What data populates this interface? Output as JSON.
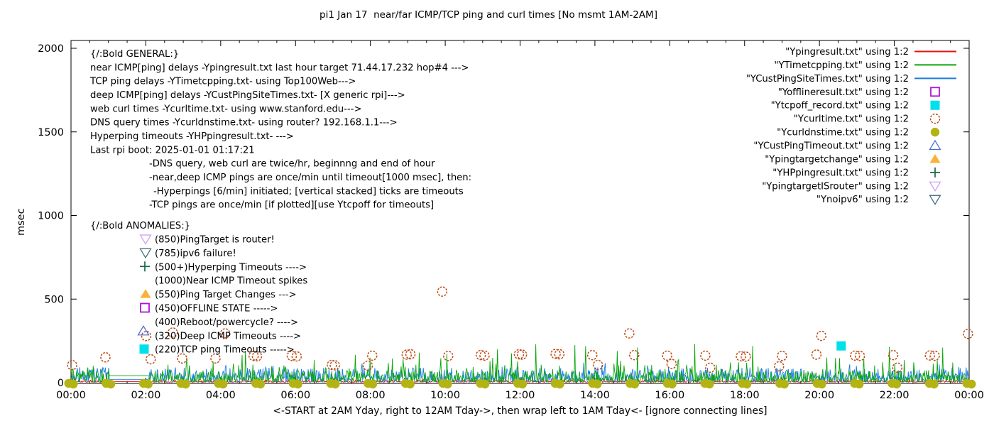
{
  "title": "pi1 Jan 17  near/far ICMP/TCP ping and curl times [No msmt 1AM-2AM]",
  "xlabel": "<-START at 2AM Yday, right to 12AM Tday->, then wrap left to 1AM Tday<- [ignore connecting lines]",
  "ylabel": "msec",
  "colors": {
    "red": "#e41212",
    "green": "#0aa50a",
    "blue": "#1b7cdf",
    "magenta": "#aa16d8",
    "cyan": "#00e0ea",
    "orange_brown": "#bf4a12",
    "olive": "#b3b313",
    "steel_blue": "#4169cf",
    "orange": "#f9b13a",
    "dark_green": "#17684a",
    "violet": "#c89bef",
    "dark_teal": "#3a657a",
    "axis": "#000000",
    "text": "#000000"
  },
  "legend": {
    "entries": [
      {
        "label": "\"Ypingresult.txt\" using 1:2",
        "sample": "line",
        "color_key": "red"
      },
      {
        "label": "\"YTimetcpping.txt\" using 1:2",
        "sample": "line",
        "color_key": "green"
      },
      {
        "label": "\"YCustPingSiteTimes.txt\" using 1:2",
        "sample": "line",
        "color_key": "blue"
      },
      {
        "label": "\"Yofflineresult.txt\" using 1:2",
        "sample": "marker",
        "shape": "square-open",
        "color_key": "magenta"
      },
      {
        "label": "\"Ytcpoff_record.txt\" using 1:2",
        "sample": "marker",
        "shape": "square-filled",
        "color_key": "cyan"
      },
      {
        "label": "\"Ycurltime.txt\" using 1:2",
        "sample": "marker",
        "shape": "circle-open",
        "color_key": "orange_brown"
      },
      {
        "label": "\"Ycurldnstime.txt\" using 1:2",
        "sample": "marker",
        "shape": "circle-filled",
        "color_key": "olive"
      },
      {
        "label": "\"YCustPingTimeout.txt\" using 1:2",
        "sample": "marker",
        "shape": "triangle-up-open",
        "color_key": "steel_blue"
      },
      {
        "label": "\"Ypingtargetchange\" using 1:2",
        "sample": "marker",
        "shape": "triangle-up-filled",
        "color_key": "orange"
      },
      {
        "label": "\"YHPpingresult.txt\" using 1:2",
        "sample": "marker",
        "shape": "plus",
        "color_key": "dark_green"
      },
      {
        "label": "\"YpingtargetISrouter\" using 1:2",
        "sample": "marker",
        "shape": "triangle-down-open",
        "color_key": "violet"
      },
      {
        "label": "\"Ynoipv6\" using 1:2",
        "sample": "marker",
        "shape": "triangle-down-open",
        "color_key": "dark_teal"
      }
    ]
  },
  "notes_general": {
    "header": "{/:Bold GENERAL:}",
    "lines": [
      "near ICMP[ping] delays -Ypingresult.txt last hour target 71.44.17.232 hop#4 --->",
      "TCP ping delays -YTimetcpping.txt- using Top100Web--->",
      "deep ICMP[ping] delays -YCustPingSiteTimes.txt- [X generic rpi]--->",
      "web curl times -Ycurltime.txt- using www.stanford.edu--->",
      "DNS query times -Ycurldnstime.txt- using router? 192.168.1.1--->",
      "Hyperping timeouts -YHPpingresult.txt- --->",
      "Last rpi boot: 2025-01-01 01:17:21"
    ],
    "indent_lines": [
      {
        "x": 210,
        "text": "-DNS query, web curl are twice/hr, beginnng and end of hour"
      },
      {
        "x": 210,
        "text": "-near,deep ICMP pings are once/min until timeout[1000 msec], then:"
      },
      {
        "x": 216,
        "text": "-Hyperpings [6/min] initiated; [vertical stacked] ticks are timeouts"
      },
      {
        "x": 210,
        "text": "-TCP pings are once/min [if plotted][use Ytcpoff for timeouts]"
      }
    ]
  },
  "notes_anomalies": {
    "header": "{/:Bold ANOMALIES:}",
    "rows": [
      {
        "text": "(850)PingTarget is router!",
        "markers": [
          {
            "shape": "triangle-down-open",
            "color_key": "violet",
            "dx": 0,
            "dy": 0
          }
        ]
      },
      {
        "text": "(785)ipv6 failure!",
        "markers": [
          {
            "shape": "triangle-down-open",
            "color_key": "dark_teal",
            "dx": 0,
            "dy": 0
          }
        ]
      },
      {
        "text": "(500+)Hyperping Timeouts ---->",
        "markers": [
          {
            "shape": "plus",
            "color_key": "dark_green",
            "dx": -1,
            "dy": 0
          }
        ]
      },
      {
        "text": "(1000)Near ICMP Timeout spikes",
        "markers": []
      },
      {
        "text": "(550)Ping Target Changes --->",
        "markers": [
          {
            "shape": "triangle-up-filled",
            "color_key": "orange",
            "dx": 0,
            "dy": 0
          }
        ]
      },
      {
        "text": "(450)OFFLINE STATE ----->",
        "markers": [
          {
            "shape": "square-open",
            "color_key": "magenta",
            "dx": -1,
            "dy": 0
          }
        ]
      },
      {
        "text": "(400)Reboot/powercycle? ---->",
        "markers": []
      },
      {
        "text": "(320)Deep ICMP Timeouts ---->",
        "markers": [
          {
            "shape": "triangle-up-open",
            "color_key": "steel_blue",
            "dx": -3,
            "dy": -6
          },
          {
            "shape": "circle-open",
            "color_key": "orange_brown",
            "dx": 1,
            "dy": 1
          }
        ]
      },
      {
        "text": "(220)TCP ping Timeouts ----->",
        "markers": [
          {
            "shape": "square-filled",
            "color_key": "cyan",
            "dx": -2,
            "dy": 0
          }
        ]
      }
    ]
  },
  "chart_data": {
    "type": "line",
    "x_axis": {
      "range_hours": [
        0,
        24
      ],
      "major_tick_hours": 2,
      "minor_tick_hours": 0.5,
      "tick_labels": [
        "00:00",
        "02:00",
        "04:00",
        "06:00",
        "08:00",
        "10:00",
        "12:00",
        "14:00",
        "16:00",
        "18:00",
        "20:00",
        "22:00",
        "00:00"
      ]
    },
    "y_axis": {
      "range_msec": [
        0,
        2000
      ],
      "tick_values": [
        0,
        500,
        1000,
        1500,
        2000
      ],
      "tick_labels": [
        "0",
        "500",
        "1000",
        "1500",
        "2000"
      ]
    },
    "measurement_gap": {
      "start_hour": 1.02,
      "end_hour": 2.08,
      "note": "No msmt 1AM-2AM"
    },
    "series": [
      {
        "name": "Ypingresult.txt",
        "style": "line",
        "color_key": "red",
        "noise": {
          "base": 3,
          "amp": 12,
          "spike_prob": 0.02,
          "spike_amp": 14,
          "spike2_prob": 0,
          "spike2_amp": 0,
          "seed": 11
        },
        "gap_value": 6
      },
      {
        "name": "YCustPingSiteTimes.txt",
        "style": "line",
        "color_key": "blue",
        "noise": {
          "base": 6,
          "amp": 85,
          "spike_prob": 0.1,
          "spike_amp": 40,
          "spike2_prob": 0,
          "spike2_amp": 0,
          "seed": 7
        },
        "gap_value": 20
      },
      {
        "name": "YTimetcpping.txt",
        "style": "line",
        "color_key": "green",
        "noise": {
          "base": 4,
          "amp": 70,
          "spike_prob": 0.13,
          "spike_amp": 110,
          "spike2_prob": 0.012,
          "spike2_amp": 90,
          "seed": 3
        },
        "gap_value": 42,
        "spikes": [
          [
            3.1,
            150
          ],
          [
            4.67,
            190
          ],
          [
            8.0,
            150
          ],
          [
            9.3,
            180
          ],
          [
            11.4,
            200
          ],
          [
            12.42,
            230
          ],
          [
            13.47,
            225
          ],
          [
            14.6,
            190
          ],
          [
            15.13,
            210
          ],
          [
            16.67,
            230
          ],
          [
            18.22,
            220
          ],
          [
            20.2,
            150
          ],
          [
            21.87,
            215
          ],
          [
            23.3,
            210
          ]
        ]
      },
      {
        "name": "Ycurltime.txt",
        "style": "points",
        "marker": "circle-open",
        "color_key": "orange_brown",
        "points": [
          [
            0.03,
            105
          ],
          [
            0.92,
            152
          ],
          [
            2.13,
            140
          ],
          [
            2.72,
            300
          ],
          [
            2.97,
            145
          ],
          [
            3.86,
            145
          ],
          [
            4.12,
            295
          ],
          [
            4.88,
            160
          ],
          [
            4.97,
            158
          ],
          [
            5.9,
            160
          ],
          [
            6.03,
            157
          ],
          [
            6.97,
            106
          ],
          [
            7.05,
            104
          ],
          [
            7.93,
            102
          ],
          [
            8.05,
            162
          ],
          [
            8.97,
            168
          ],
          [
            9.07,
            170
          ],
          [
            9.92,
            545
          ],
          [
            10.08,
            160
          ],
          [
            10.95,
            165
          ],
          [
            11.05,
            162
          ],
          [
            11.97,
            170
          ],
          [
            12.05,
            168
          ],
          [
            12.95,
            172
          ],
          [
            13.05,
            170
          ],
          [
            13.93,
            165
          ],
          [
            14.08,
            106
          ],
          [
            14.92,
            295
          ],
          [
            15.05,
            165
          ],
          [
            15.93,
            162
          ],
          [
            16.05,
            112
          ],
          [
            16.95,
            162
          ],
          [
            17.08,
            90
          ],
          [
            17.9,
            158
          ],
          [
            18.03,
            156
          ],
          [
            18.92,
            98
          ],
          [
            19.0,
            160
          ],
          [
            19.92,
            168
          ],
          [
            20.05,
            280
          ],
          [
            20.95,
            162
          ],
          [
            21.08,
            160
          ],
          [
            21.97,
            165
          ],
          [
            22.08,
            90
          ],
          [
            22.95,
            163
          ],
          [
            23.08,
            161
          ],
          [
            23.97,
            292
          ]
        ]
      },
      {
        "name": "Ycurldnstime.txt",
        "style": "points",
        "marker": "circle-filled-double",
        "color_key": "olive",
        "hourly": {
          "from": 0,
          "to": 24,
          "step": 1,
          "value": 0
        }
      },
      {
        "name": "Ytcpoff_record.txt",
        "style": "points",
        "marker": "square-filled",
        "color_key": "cyan",
        "points": [
          [
            20.58,
            220
          ]
        ]
      }
    ]
  }
}
